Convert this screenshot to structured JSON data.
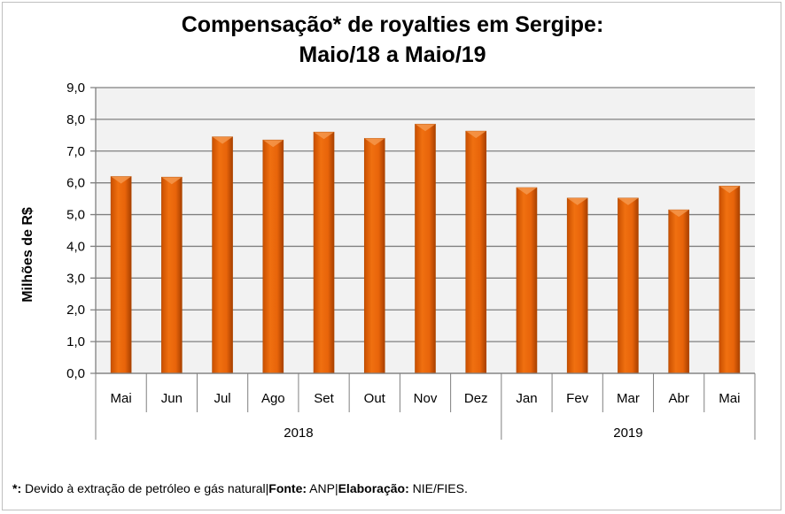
{
  "chart_data": {
    "type": "bar",
    "title": "Compensação* de royalties em Sergipe:",
    "subtitle": "Maio/18 a Maio/19",
    "ylabel": "Milhões de R$",
    "xlabel": "",
    "ylim": [
      0,
      9
    ],
    "yticks": [
      "0,0",
      "1,0",
      "2,0",
      "3,0",
      "4,0",
      "5,0",
      "6,0",
      "7,0",
      "8,0",
      "9,0"
    ],
    "categories": [
      "Mai",
      "Jun",
      "Jul",
      "Ago",
      "Set",
      "Out",
      "Nov",
      "Dez",
      "Jan",
      "Fev",
      "Mar",
      "Abr",
      "Mai"
    ],
    "groups": [
      {
        "label": "2018",
        "count": 8
      },
      {
        "label": "2019",
        "count": 5
      }
    ],
    "values": [
      6.2,
      6.18,
      7.45,
      7.35,
      7.6,
      7.4,
      7.85,
      7.63,
      5.85,
      5.52,
      5.52,
      5.15,
      5.9
    ],
    "grid": true,
    "bar_color": "#e8640a"
  },
  "footnote": {
    "star": "*:",
    "star_text": " Devido à extração de petróleo e gás natural|",
    "source_label": "Fonte:",
    "source_text": " ANP|",
    "elab_label": "Elaboração:",
    "elab_text": " NIE/FIES."
  }
}
